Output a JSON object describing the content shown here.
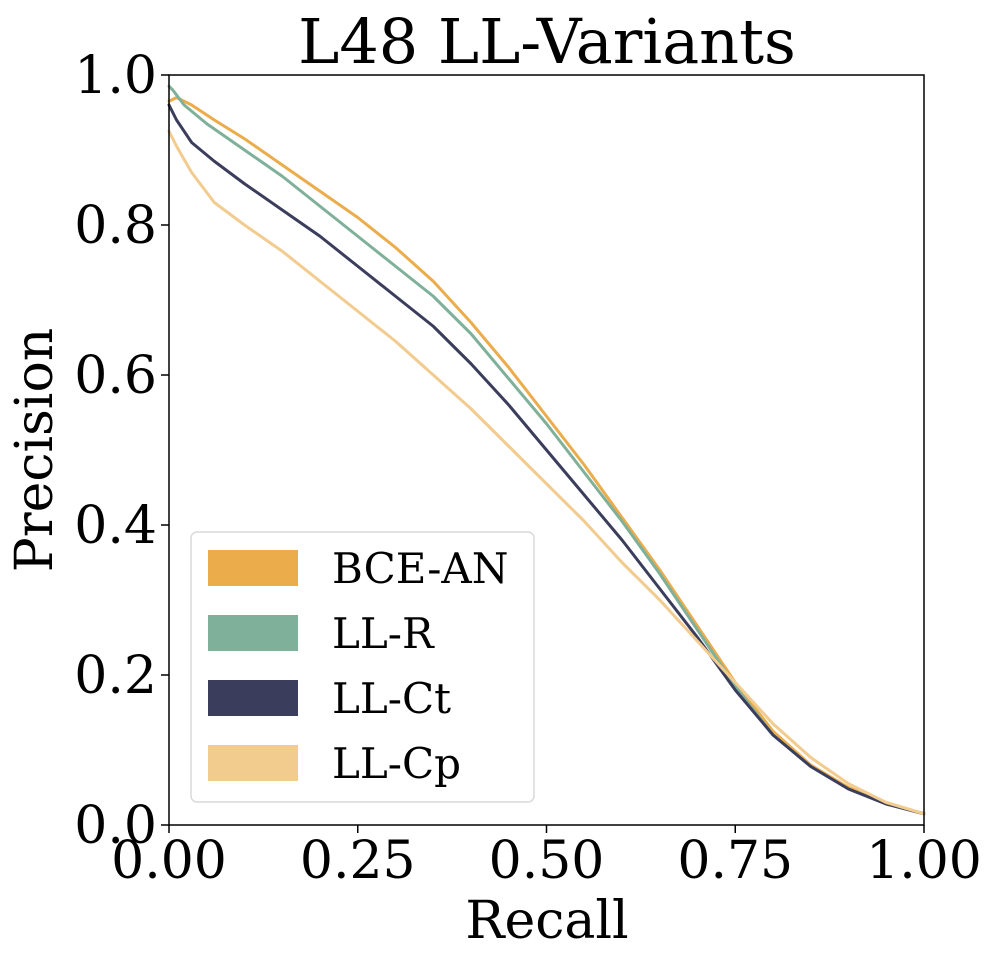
{
  "chart_data": {
    "type": "line",
    "title": "L48 LL-Variants",
    "xlabel": "Recall",
    "ylabel": "Precision",
    "xlim": [
      0,
      1
    ],
    "ylim": [
      0,
      1
    ],
    "xticks": [
      0,
      0.25,
      0.5,
      0.75,
      1.0
    ],
    "xtick_labels": [
      "0.00",
      "0.25",
      "0.50",
      "0.75",
      "1.00"
    ],
    "yticks": [
      0,
      0.2,
      0.4,
      0.6,
      0.8,
      1.0
    ],
    "ytick_labels": [
      "0.0",
      "0.2",
      "0.4",
      "0.6",
      "0.8",
      "1.0"
    ],
    "grid": false,
    "legend_position": "lower-left",
    "series": [
      {
        "name": "BCE-AN",
        "color": "#EBAC4B",
        "x": [
          0,
          0.01,
          0.03,
          0.06,
          0.1,
          0.15,
          0.2,
          0.25,
          0.3,
          0.35,
          0.4,
          0.45,
          0.5,
          0.55,
          0.6,
          0.65,
          0.7,
          0.75,
          0.8,
          0.85,
          0.9,
          0.95,
          1.0
        ],
        "y": [
          0.965,
          0.97,
          0.96,
          0.94,
          0.915,
          0.88,
          0.845,
          0.81,
          0.77,
          0.725,
          0.67,
          0.61,
          0.545,
          0.48,
          0.41,
          0.34,
          0.265,
          0.19,
          0.125,
          0.08,
          0.05,
          0.03,
          0.015
        ]
      },
      {
        "name": "LL-R",
        "color": "#7FB099",
        "x": [
          0,
          0.005,
          0.02,
          0.05,
          0.1,
          0.15,
          0.2,
          0.25,
          0.3,
          0.35,
          0.4,
          0.45,
          0.5,
          0.55,
          0.6,
          0.65,
          0.7,
          0.75,
          0.8,
          0.85,
          0.9,
          0.95,
          1.0
        ],
        "y": [
          0.985,
          0.98,
          0.96,
          0.935,
          0.9,
          0.865,
          0.825,
          0.785,
          0.745,
          0.705,
          0.655,
          0.595,
          0.535,
          0.47,
          0.405,
          0.335,
          0.26,
          0.185,
          0.12,
          0.078,
          0.048,
          0.028,
          0.015
        ]
      },
      {
        "name": "LL-Ct",
        "color": "#3B3D5C",
        "x": [
          0,
          0.01,
          0.03,
          0.06,
          0.1,
          0.15,
          0.2,
          0.25,
          0.3,
          0.35,
          0.4,
          0.45,
          0.5,
          0.55,
          0.6,
          0.65,
          0.7,
          0.75,
          0.8,
          0.85,
          0.9,
          0.95,
          1.0
        ],
        "y": [
          0.96,
          0.94,
          0.91,
          0.885,
          0.855,
          0.82,
          0.785,
          0.745,
          0.705,
          0.665,
          0.615,
          0.56,
          0.5,
          0.44,
          0.38,
          0.315,
          0.25,
          0.18,
          0.12,
          0.078,
          0.048,
          0.028,
          0.015
        ]
      },
      {
        "name": "LL-Cp",
        "color": "#F2CB8E",
        "x": [
          0,
          0.01,
          0.03,
          0.06,
          0.1,
          0.15,
          0.2,
          0.25,
          0.3,
          0.35,
          0.4,
          0.45,
          0.5,
          0.55,
          0.6,
          0.65,
          0.7,
          0.75,
          0.8,
          0.85,
          0.9,
          0.95,
          1.0
        ],
        "y": [
          0.925,
          0.905,
          0.87,
          0.83,
          0.8,
          0.765,
          0.725,
          0.685,
          0.645,
          0.6,
          0.555,
          0.505,
          0.455,
          0.405,
          0.35,
          0.3,
          0.245,
          0.19,
          0.135,
          0.09,
          0.055,
          0.03,
          0.015
        ]
      }
    ]
  }
}
